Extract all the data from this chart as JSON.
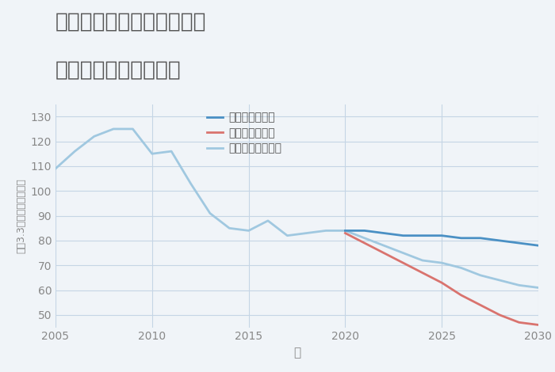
{
  "title_line1": "兵庫県豊岡市日高町森山の",
  "title_line2": "中古戸建ての価格推移",
  "xlabel": "年",
  "ylabel": "坪（3.3㎡）単価（万円）",
  "xlim": [
    2005,
    2030
  ],
  "ylim": [
    45,
    135
  ],
  "yticks": [
    50,
    60,
    70,
    80,
    90,
    100,
    110,
    120,
    130
  ],
  "xticks": [
    2005,
    2010,
    2015,
    2020,
    2025,
    2030
  ],
  "background_color": "#f0f4f8",
  "plot_bg_color": "#f0f4f8",
  "good_scenario": {
    "label": "グッドシナリオ",
    "color": "#4a90c4",
    "x": [
      2020,
      2021,
      2022,
      2023,
      2024,
      2025,
      2026,
      2027,
      2028,
      2029,
      2030
    ],
    "y": [
      84,
      84,
      83,
      82,
      82,
      82,
      81,
      81,
      80,
      79,
      78
    ]
  },
  "bad_scenario": {
    "label": "バッドシナリオ",
    "color": "#d9736e",
    "x": [
      2020,
      2021,
      2022,
      2023,
      2024,
      2025,
      2026,
      2027,
      2028,
      2029,
      2030
    ],
    "y": [
      83,
      79,
      75,
      71,
      67,
      63,
      58,
      54,
      50,
      47,
      46
    ]
  },
  "normal_scenario": {
    "label": "ノーマルシナリオ",
    "color": "#a0c8e0",
    "x": [
      2005,
      2006,
      2007,
      2008,
      2009,
      2010,
      2011,
      2012,
      2013,
      2014,
      2015,
      2016,
      2017,
      2018,
      2019,
      2020,
      2021,
      2022,
      2023,
      2024,
      2025,
      2026,
      2027,
      2028,
      2029,
      2030
    ],
    "y": [
      109,
      116,
      122,
      125,
      125,
      115,
      116,
      103,
      91,
      85,
      84,
      88,
      82,
      83,
      84,
      84,
      81,
      78,
      75,
      72,
      71,
      69,
      66,
      64,
      62,
      61
    ]
  },
  "title_color": "#555555",
  "title_fontsize": 19,
  "axis_label_color": "#888888",
  "tick_color": "#888888",
  "grid_color": "#c5d5e5",
  "legend_fontsize": 10,
  "linewidth": 2.0
}
